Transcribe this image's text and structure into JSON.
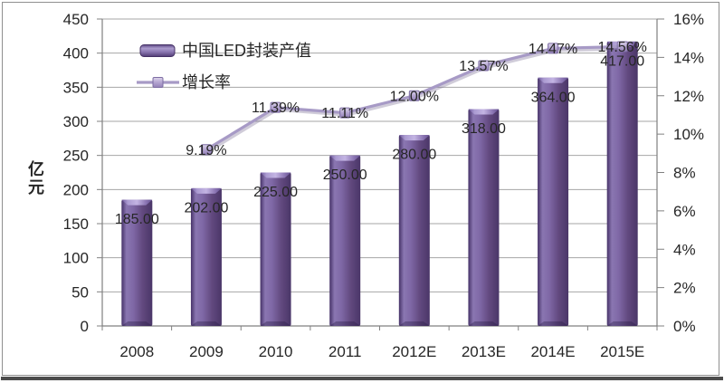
{
  "chart_data": {
    "type": "combo-bar-line",
    "categories": [
      "2008",
      "2009",
      "2010",
      "2011",
      "2012E",
      "2013E",
      "2014E",
      "2015E"
    ],
    "series": [
      {
        "name": "中国LED封装产值",
        "type": "bar",
        "axis": "left",
        "values": [
          185,
          202,
          225,
          250,
          280,
          318,
          364,
          417
        ],
        "data_labels": [
          "185.00",
          "202.00",
          "225.00",
          "250.00",
          "280.00",
          "318.00",
          "364.00",
          "417.00"
        ],
        "color": "#604a7b"
      },
      {
        "name": "增长率",
        "type": "line",
        "axis": "right",
        "values": [
          null,
          9.19,
          11.39,
          11.11,
          12.0,
          13.57,
          14.47,
          14.56
        ],
        "data_labels": [
          null,
          "9.19%",
          "11.39%",
          "11.11%",
          "12.00%",
          "13.57%",
          "14.47%",
          "14.56%"
        ],
        "color": "#a79ac6"
      }
    ],
    "left_axis": {
      "title": "亿元",
      "min": 0,
      "max": 450,
      "step": 50,
      "tick_labels": [
        "0",
        "50",
        "100",
        "150",
        "200",
        "250",
        "300",
        "350",
        "400",
        "450"
      ]
    },
    "right_axis": {
      "min": 0,
      "max": 16,
      "step": 2,
      "tick_labels": [
        "0%",
        "2%",
        "4%",
        "6%",
        "8%",
        "10%",
        "12%",
        "14%",
        "16%"
      ]
    },
    "legend": {
      "position": "top-left-inside",
      "entries": [
        "中国LED封装产值",
        "增长率"
      ]
    },
    "grid": true
  },
  "style": {
    "text_color": "#262626",
    "label_color": "#1f1f1f",
    "gridline_color": "#a6a6a6",
    "axis_color": "#808080",
    "bar_dark": "#4a3668",
    "bar_light": "#8a76b1",
    "line_color": "#a79ac6",
    "marker_stroke": "#7d6da3",
    "frame_border": "#8f8f8f",
    "bottom_rule": "#4c4c4c"
  }
}
